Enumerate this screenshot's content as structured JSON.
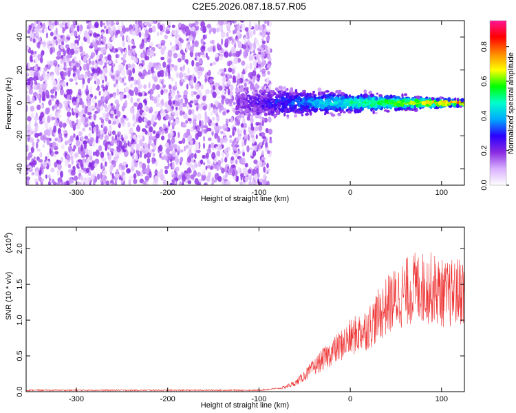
{
  "title": "C2E5.2026.087.18.57.R05",
  "chart_data": [
    {
      "type": "heatmap",
      "name": "spectrogram",
      "xlabel": "Height of straight line (km)",
      "ylabel": "Frequency (Hz)",
      "xlim": [
        -355,
        125
      ],
      "ylim": [
        -50,
        50
      ],
      "xticks": [
        -300,
        -200,
        -100,
        0,
        100
      ],
      "yticks": [
        -40,
        -20,
        0,
        20,
        40
      ],
      "colorbar": {
        "label": "Normalized spectral amplitude",
        "range": [
          0,
          0.95
        ],
        "ticks": [
          0.0,
          0.2,
          0.4,
          0.6,
          0.8
        ],
        "colormap": [
          "#ffffff",
          "#d9b0ff",
          "#8a2be2",
          "#2a00ff",
          "#00aaff",
          "#00ffcc",
          "#00ff00",
          "#ffff00",
          "#ff8800",
          "#ff0000",
          "#ff1493"
        ]
      },
      "features": {
        "noise_region_x": [
          -355,
          -95
        ],
        "noise_amplitude": [
          0.03,
          0.2
        ],
        "signal_region_x": [
          -125,
          125
        ],
        "signal_center_freq": 0,
        "signal_peak_amplitude": 0.85
      }
    },
    {
      "type": "line",
      "name": "snr",
      "xlabel": "Height of straight line (km)",
      "ylabel": "SNR (10 * v/v)",
      "multiplier": "(x10",
      "multiplier_exp": "4",
      "xlim": [
        -355,
        125
      ],
      "ylim": [
        0,
        2.3
      ],
      "xticks": [
        -300,
        -200,
        -100,
        0,
        100
      ],
      "yticks": [
        0.0,
        0.5,
        1.0,
        1.5,
        2.0
      ],
      "color": "#ee3333",
      "trend": {
        "x": [
          -355,
          -100,
          -75,
          -60,
          -45,
          -30,
          -20,
          -10,
          0,
          20,
          40,
          55,
          70,
          90,
          105,
          125
        ],
        "y": [
          0.02,
          0.02,
          0.05,
          0.12,
          0.28,
          0.45,
          0.55,
          0.65,
          0.75,
          0.9,
          1.2,
          1.35,
          1.45,
          1.45,
          1.35,
          1.42
        ]
      }
    }
  ]
}
